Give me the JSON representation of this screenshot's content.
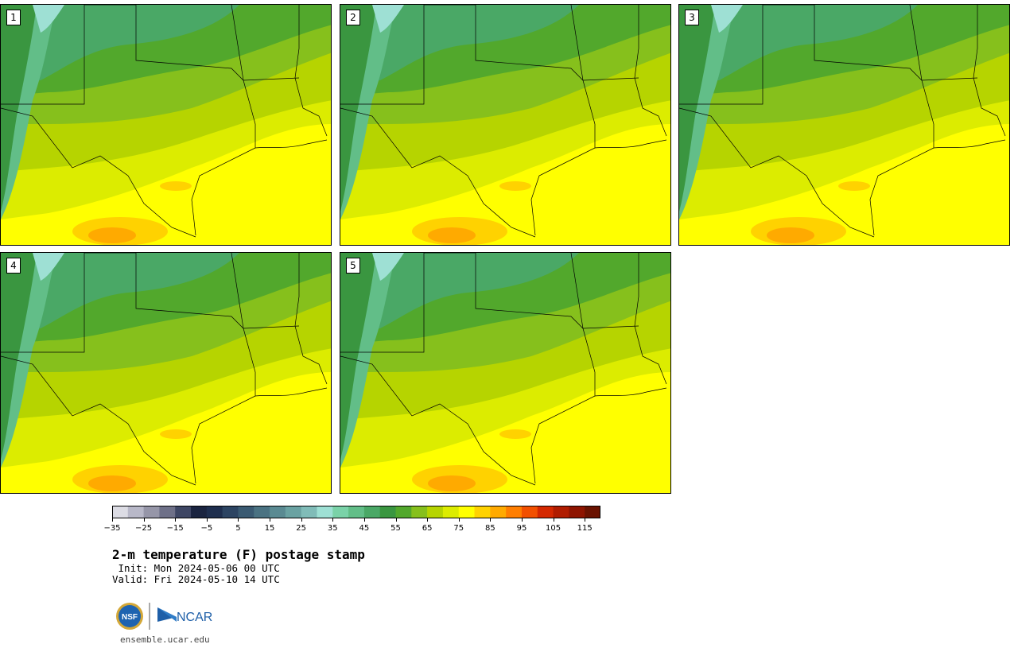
{
  "panels": [
    {
      "label": "1"
    },
    {
      "label": "2"
    },
    {
      "label": "3"
    },
    {
      "label": "4"
    },
    {
      "label": "5"
    }
  ],
  "colorbar": {
    "colors": [
      "#dcdce4",
      "#b8b8c8",
      "#9696a8",
      "#6e7088",
      "#3e4664",
      "#1a2440",
      "#1e2e4e",
      "#2c4462",
      "#3a5a72",
      "#4a7282",
      "#5a8a92",
      "#6aa2a2",
      "#80bcb8",
      "#9ee0d4",
      "#7ad2a8",
      "#62be88",
      "#4aa866",
      "#3a9640",
      "#52a82c",
      "#86c01c",
      "#b6d400",
      "#dcec00",
      "#ffff00",
      "#ffd200",
      "#ffaa00",
      "#ff7e00",
      "#f25000",
      "#d42800",
      "#b01c00",
      "#8e1400",
      "#6a1200"
    ],
    "tick_labels": [
      "−35",
      "−25",
      "−15",
      "−5",
      "5",
      "15",
      "25",
      "35",
      "45",
      "55",
      "65",
      "75",
      "85",
      "95",
      "105",
      "115"
    ]
  },
  "title": "2-m temperature (F) postage stamp",
  "init_text": " Init: Mon 2024-05-06 00 UTC",
  "valid_text": "Valid: Fri 2024-05-10 14 UTC",
  "logos": {
    "nsf": "NSF",
    "ncar": "NCAR"
  },
  "footer_url": "ensemble.ucar.edu"
}
